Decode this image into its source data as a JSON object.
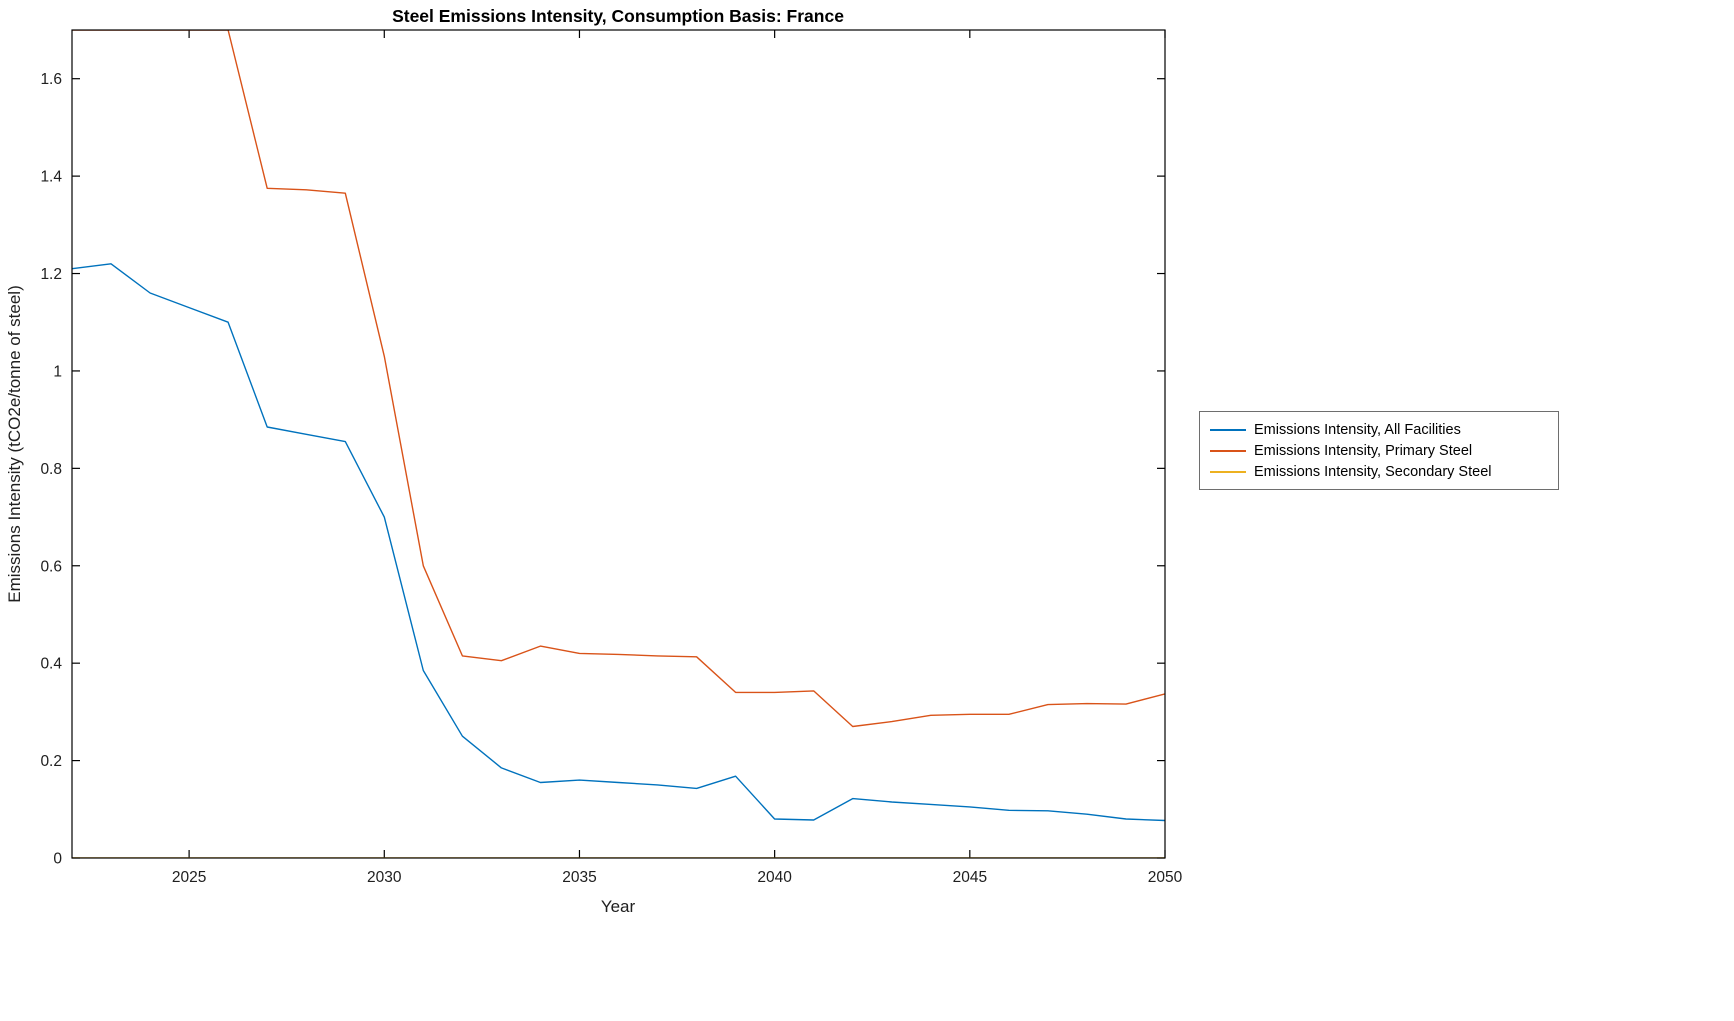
{
  "chart_data": {
    "type": "line",
    "title": "Steel Emissions Intensity, Consumption Basis: France",
    "xlabel": "Year",
    "ylabel": "Emissions Intensity (tCO2e/tonne of steel)",
    "xlim": [
      2022,
      2050
    ],
    "ylim": [
      0,
      1.7
    ],
    "xticks": [
      2025,
      2030,
      2035,
      2040,
      2045,
      2050
    ],
    "xtick_labels": [
      "2025",
      "2030",
      "2035",
      "2040",
      "2045",
      "2050"
    ],
    "yticks": [
      0,
      0.2,
      0.4,
      0.6,
      0.8,
      1,
      1.2,
      1.4,
      1.6
    ],
    "ytick_labels": [
      "0",
      "0.2",
      "0.4",
      "0.6",
      "0.8",
      "1",
      "1.2",
      "1.4",
      "1.6"
    ],
    "grid": false,
    "legend_position": "right-outside",
    "x": [
      2022,
      2023,
      2024,
      2025,
      2026,
      2027,
      2028,
      2029,
      2030,
      2031,
      2032,
      2033,
      2034,
      2035,
      2036,
      2037,
      2038,
      2039,
      2040,
      2041,
      2042,
      2043,
      2044,
      2045,
      2046,
      2047,
      2048,
      2049,
      2050
    ],
    "series": [
      {
        "name": "Emissions Intensity, All Facilities",
        "color": "#0072BD",
        "values": [
          1.21,
          1.22,
          1.16,
          1.13,
          1.1,
          0.885,
          0.87,
          0.855,
          0.7,
          0.385,
          0.25,
          0.185,
          0.155,
          0.16,
          0.155,
          0.15,
          0.143,
          0.168,
          0.08,
          0.078,
          0.122,
          0.115,
          0.11,
          0.105,
          0.098,
          0.097,
          0.09,
          0.08,
          0.077
        ]
      },
      {
        "name": "Emissions Intensity, Primary Steel",
        "color": "#D95319",
        "values": [
          1.7,
          1.7,
          1.7,
          1.7,
          1.7,
          1.375,
          1.372,
          1.365,
          1.03,
          0.6,
          0.415,
          0.405,
          0.435,
          0.42,
          0.418,
          0.415,
          0.413,
          0.34,
          0.34,
          0.343,
          0.27,
          0.28,
          0.293,
          0.295,
          0.295,
          0.315,
          0.317,
          0.316,
          0.337
        ]
      },
      {
        "name": "Emissions Intensity, Secondary Steel",
        "color": "#EDB120",
        "values": [
          0,
          0,
          0,
          0,
          0,
          0,
          0,
          0,
          0,
          0,
          0,
          0,
          0,
          0,
          0,
          0,
          0,
          0,
          0,
          0,
          0,
          0,
          0,
          0,
          0,
          0,
          0,
          0,
          0
        ]
      }
    ]
  }
}
